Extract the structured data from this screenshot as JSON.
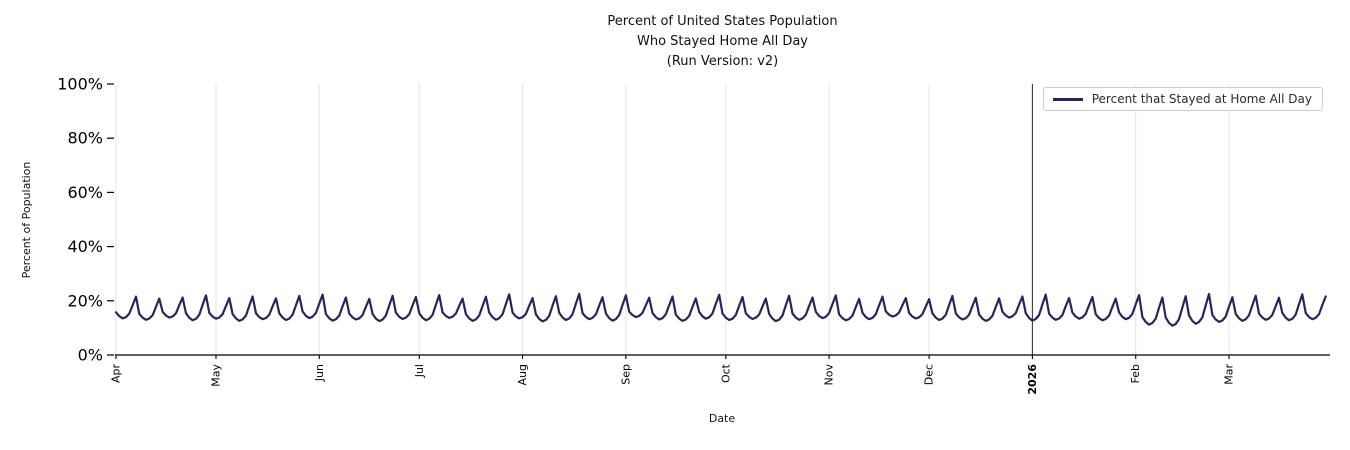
{
  "title": {
    "line1": "Percent of United States Population",
    "line2": "Who Stayed Home All Day",
    "line3": "(Run Version: v2)"
  },
  "chart_data": {
    "type": "line",
    "title": "Percent of United States Population\nWho Stayed Home All Day\n(Run Version: v2)",
    "xlabel": "Date",
    "ylabel": "Percent of Population",
    "ylim": [
      0,
      100
    ],
    "y_ticks": [
      {
        "value": 0,
        "label": "0%"
      },
      {
        "value": 20,
        "label": "20%"
      },
      {
        "value": 40,
        "label": "40%"
      },
      {
        "value": 60,
        "label": "60%"
      },
      {
        "value": 80,
        "label": "80%"
      },
      {
        "value": 100,
        "label": "100%"
      }
    ],
    "x_ticks": [
      {
        "label": "Apr",
        "day": 0,
        "bold": false
      },
      {
        "label": "May",
        "day": 30,
        "bold": false
      },
      {
        "label": "Jun",
        "day": 61,
        "bold": false
      },
      {
        "label": "Jul",
        "day": 91,
        "bold": false
      },
      {
        "label": "Aug",
        "day": 122,
        "bold": false
      },
      {
        "label": "Sep",
        "day": 153,
        "bold": false
      },
      {
        "label": "Oct",
        "day": 183,
        "bold": false
      },
      {
        "label": "Nov",
        "day": 214,
        "bold": false
      },
      {
        "label": "Dec",
        "day": 244,
        "bold": false
      },
      {
        "label": "2026",
        "day": 275,
        "bold": true
      },
      {
        "label": "Feb",
        "day": 306,
        "bold": false
      },
      {
        "label": "Mar",
        "day": 334,
        "bold": false
      }
    ],
    "x_domain_days": 364,
    "year_boundary_day": 275,
    "grid": "vertical-month-lines",
    "legend": {
      "label": "Percent that Stayed at Home All Day",
      "position": "upper right"
    },
    "series": [
      {
        "name": "Percent that Stayed at Home All Day",
        "unit": "percent",
        "weekly_shape": [
          0.28,
          0.1,
          0.0,
          0.06,
          0.22,
          0.62,
          1.0
        ],
        "week_lows": [
          13.5,
          13.0,
          13.8,
          12.8,
          13.4,
          12.6,
          13.2,
          12.9,
          13.6,
          12.7,
          13.1,
          12.5,
          13.3,
          12.8,
          13.7,
          12.6,
          13.0,
          13.5,
          12.4,
          12.9,
          13.2,
          12.7,
          14.0,
          13.1,
          12.6,
          13.4,
          12.9,
          13.3,
          12.5,
          13.0,
          13.6,
          12.8,
          13.2,
          14.2,
          13.5,
          12.9,
          13.1,
          12.6,
          13.8,
          12.7,
          13.0,
          13.4,
          12.8,
          13.2,
          11.2,
          10.8,
          11.5,
          12.2,
          12.6,
          13.0,
          12.8,
          13.2
        ],
        "week_peaks": [
          21.5,
          20.8,
          21.2,
          22.0,
          21.0,
          21.6,
          20.9,
          21.8,
          22.3,
          21.2,
          20.7,
          21.9,
          21.4,
          22.1,
          20.8,
          21.5,
          22.4,
          21.0,
          21.7,
          22.6,
          21.3,
          22.0,
          21.1,
          21.6,
          20.9,
          22.2,
          21.4,
          20.8,
          21.9,
          21.2,
          22.0,
          20.7,
          21.5,
          21.0,
          20.6,
          21.8,
          21.1,
          20.9,
          21.6,
          22.3,
          21.0,
          21.4,
          20.8,
          22.1,
          21.2,
          21.7,
          22.5,
          21.3,
          21.9,
          21.1,
          22.4,
          21.6
        ]
      }
    ]
  },
  "colors": {
    "series_line": "#26265f",
    "grid_line": "#e5e5e5",
    "year_line": "#3a3a3a",
    "axis": "#000000",
    "legend_border": "#cccccc",
    "background": "#ffffff"
  }
}
